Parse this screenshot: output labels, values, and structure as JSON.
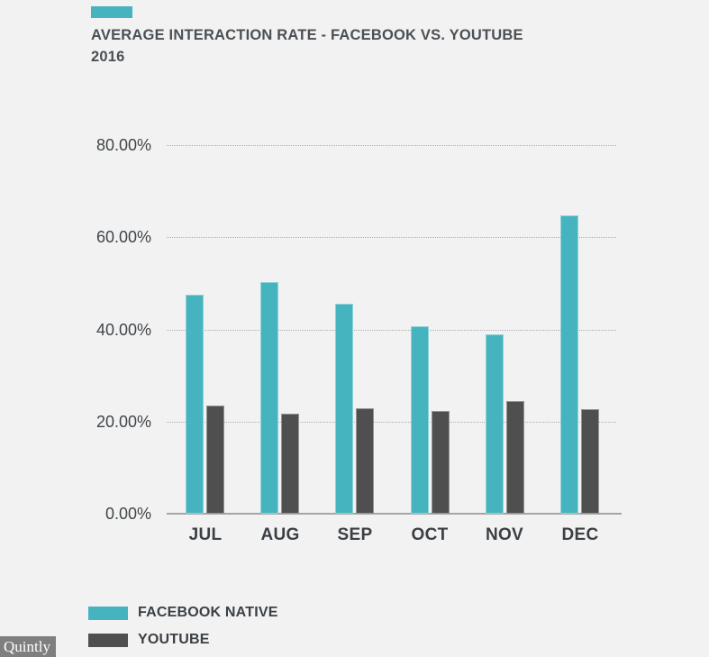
{
  "chart_data": {
    "type": "bar",
    "title": "AVERAGE INTERACTION RATE - FACEBOOK VS. YOUTUBE",
    "subtitle": "2016",
    "categories": [
      "JUL",
      "AUG",
      "SEP",
      "OCT",
      "NOV",
      "DEC"
    ],
    "series": [
      {
        "name": "FACEBOOK NATIVE",
        "color": "#45b4be",
        "values": [
          47.5,
          50.3,
          45.5,
          40.7,
          38.9,
          64.8
        ]
      },
      {
        "name": "YOUTUBE",
        "color": "#4f4f4f",
        "values": [
          23.5,
          21.8,
          22.9,
          22.3,
          24.5,
          22.6
        ]
      }
    ],
    "xlabel": "",
    "ylabel": "",
    "unit": "%",
    "ylim": [
      0,
      80
    ],
    "yticks": [
      0,
      20,
      40,
      60,
      80
    ],
    "ytick_labels": [
      "0.00%",
      "20.00%",
      "40.00%",
      "60.00%",
      "80.00%"
    ],
    "grid": "horizontal-dotted",
    "legend_position": "bottom-left"
  },
  "colors": {
    "background": "#f2f2f2",
    "accent_teal": "#45b4be",
    "bar_dark": "#4f4f4f",
    "text_dark": "#3b4045",
    "title_text": "#4a5055",
    "gridline": "#aeaeae",
    "axis_line": "#a5a5a5",
    "watermark_bg": "#7f7f7f",
    "watermark_text": "#ffffff"
  },
  "watermark": "Quintly"
}
